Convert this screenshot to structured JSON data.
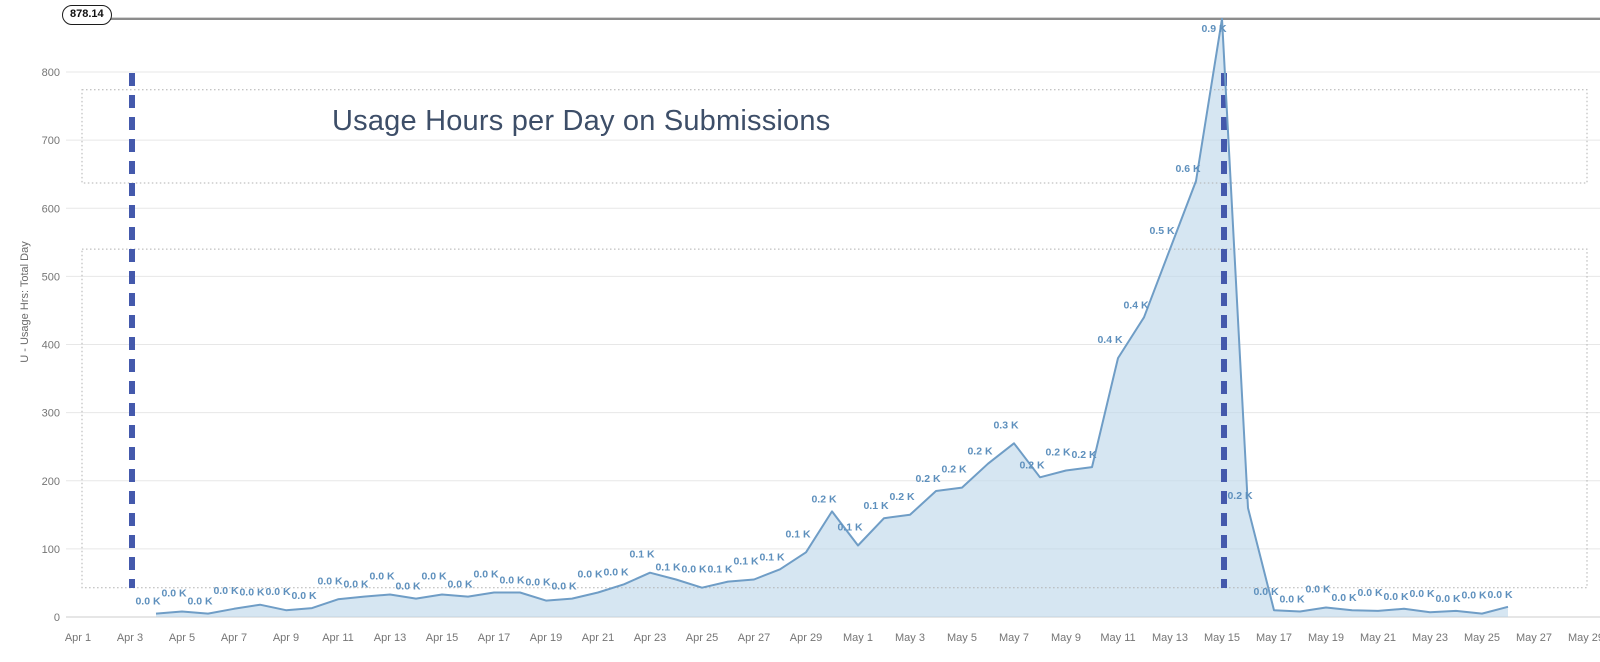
{
  "page": {
    "background": "#ffffff"
  },
  "badge": {
    "value_label": "878.14"
  },
  "chart_data": {
    "type": "area",
    "title": "Usage Hours per Day on Submissions",
    "xlabel": "",
    "ylabel": "U - Usage Hrs: Total Day",
    "ylim": [
      0,
      800
    ],
    "yticks": [
      0,
      100,
      200,
      300,
      400,
      500,
      600,
      700,
      800
    ],
    "xticks": [
      "Apr 1",
      "Apr 3",
      "Apr 5",
      "Apr 7",
      "Apr 9",
      "Apr 11",
      "Apr 13",
      "Apr 15",
      "Apr 17",
      "Apr 19",
      "Apr 21",
      "Apr 23",
      "Apr 25",
      "Apr 27",
      "Apr 29",
      "May 1",
      "May 3",
      "May 5",
      "May 7",
      "May 9",
      "May 11",
      "May 13",
      "May 15",
      "May 17",
      "May 19",
      "May 21",
      "May 23",
      "May 25",
      "May 27",
      "May 29"
    ],
    "grid": true,
    "legend": false,
    "max_reference_value": 878.14,
    "reference_dates": [
      "Apr 3",
      "May 15"
    ],
    "annotation_bands": [
      {
        "value_top": 774,
        "value_bottom": 637
      },
      {
        "value_top": 540,
        "value_bottom": 43
      }
    ],
    "points": [
      {
        "date": "Apr 4",
        "value": 5,
        "label": "0.0 K"
      },
      {
        "date": "Apr 5",
        "value": 8,
        "label": "0.0 K"
      },
      {
        "date": "Apr 6",
        "value": 5,
        "label": "0.0 K"
      },
      {
        "date": "Apr 7",
        "value": 12,
        "label": "0.0 K"
      },
      {
        "date": "Apr 8",
        "value": 18,
        "label": "0.0 K"
      },
      {
        "date": "Apr 9",
        "value": 10,
        "label": "0.0 K"
      },
      {
        "date": "Apr 10",
        "value": 13,
        "label": "0.0 K"
      },
      {
        "date": "Apr 11",
        "value": 26,
        "label": "0.0 K"
      },
      {
        "date": "Apr 12",
        "value": 30,
        "label": "0.0 K"
      },
      {
        "date": "Apr 13",
        "value": 33,
        "label": "0.0 K"
      },
      {
        "date": "Apr 14",
        "value": 27,
        "label": "0.0 K"
      },
      {
        "date": "Apr 15",
        "value": 33,
        "label": "0.0 K"
      },
      {
        "date": "Apr 16",
        "value": 30,
        "label": "0.0 K"
      },
      {
        "date": "Apr 17",
        "value": 36,
        "label": "0.0 K"
      },
      {
        "date": "Apr 18",
        "value": 36,
        "label": "0.0 K"
      },
      {
        "date": "Apr 19",
        "value": 24,
        "label": "0.0 K"
      },
      {
        "date": "Apr 20",
        "value": 27,
        "label": "0.0 K"
      },
      {
        "date": "Apr 21",
        "value": 36,
        "label": "0.0 K"
      },
      {
        "date": "Apr 22",
        "value": 48,
        "label": "0.0 K"
      },
      {
        "date": "Apr 23",
        "value": 65,
        "label": "0.1 K"
      },
      {
        "date": "Apr 24",
        "value": 55,
        "label": "0.1 K"
      },
      {
        "date": "Apr 25",
        "value": 43,
        "label": "0.0 K"
      },
      {
        "date": "Apr 26",
        "value": 52,
        "label": "0.1 K"
      },
      {
        "date": "Apr 27",
        "value": 55,
        "label": "0.1 K"
      },
      {
        "date": "Apr 28",
        "value": 70,
        "label": "0.1 K"
      },
      {
        "date": "Apr 29",
        "value": 95,
        "label": "0.1 K"
      },
      {
        "date": "Apr 30",
        "value": 155,
        "label": "0.2 K"
      },
      {
        "date": "May 1",
        "value": 105,
        "label": "0.1 K"
      },
      {
        "date": "May 2",
        "value": 145,
        "label": "0.1 K"
      },
      {
        "date": "May 3",
        "value": 150,
        "label": "0.2 K"
      },
      {
        "date": "May 4",
        "value": 185,
        "label": "0.2 K"
      },
      {
        "date": "May 5",
        "value": 190,
        "label": "0.2 K"
      },
      {
        "date": "May 6",
        "value": 225,
        "label": "0.2 K"
      },
      {
        "date": "May 7",
        "value": 255,
        "label": "0.3 K"
      },
      {
        "date": "May 8",
        "value": 205,
        "label": "0.2 K"
      },
      {
        "date": "May 9",
        "value": 215,
        "label": "0.2 K"
      },
      {
        "date": "May 10",
        "value": 220,
        "label": "0.2 K"
      },
      {
        "date": "May 11",
        "value": 380,
        "label": "0.4 K"
      },
      {
        "date": "May 12",
        "value": 440,
        "label": "0.4 K"
      },
      {
        "date": "May 13",
        "value": 540,
        "label": "0.5 K"
      },
      {
        "date": "May 14",
        "value": 640,
        "label": "0.6 K"
      },
      {
        "date": "May 15",
        "value": 878.14,
        "label": "0.9 K"
      },
      {
        "date": "May 16",
        "value": 160,
        "label": "0.2 K"
      },
      {
        "date": "May 17",
        "value": 10,
        "label": "0.0 K"
      },
      {
        "date": "May 18",
        "value": 8,
        "label": "0.0 K"
      },
      {
        "date": "May 19",
        "value": 14,
        "label": "0.0 K"
      },
      {
        "date": "May 20",
        "value": 10,
        "label": "0.0 K"
      },
      {
        "date": "May 21",
        "value": 9,
        "label": "0.0 K"
      },
      {
        "date": "May 22",
        "value": 12,
        "label": "0.0 K"
      },
      {
        "date": "May 23",
        "value": 7,
        "label": "0.0 K"
      },
      {
        "date": "May 24",
        "value": 9,
        "label": "0.0 K"
      },
      {
        "date": "May 25",
        "value": 5,
        "label": "0.0 K"
      },
      {
        "date": "May 26",
        "value": 15,
        "label": "0.0 K"
      }
    ]
  },
  "colors": {
    "series_line": "#6f9dc6",
    "series_fill": "#bdd7ea",
    "data_label": "#5e90bd",
    "reference_dash": "#4459ac",
    "max_reference_line": "#8c8c8c",
    "gridline": "#e7e7e7",
    "axis_baseline": "#cccccc",
    "tick_text": "#757575",
    "annotation_border": "#b0b0b0",
    "title_text": "#3d4e68"
  }
}
